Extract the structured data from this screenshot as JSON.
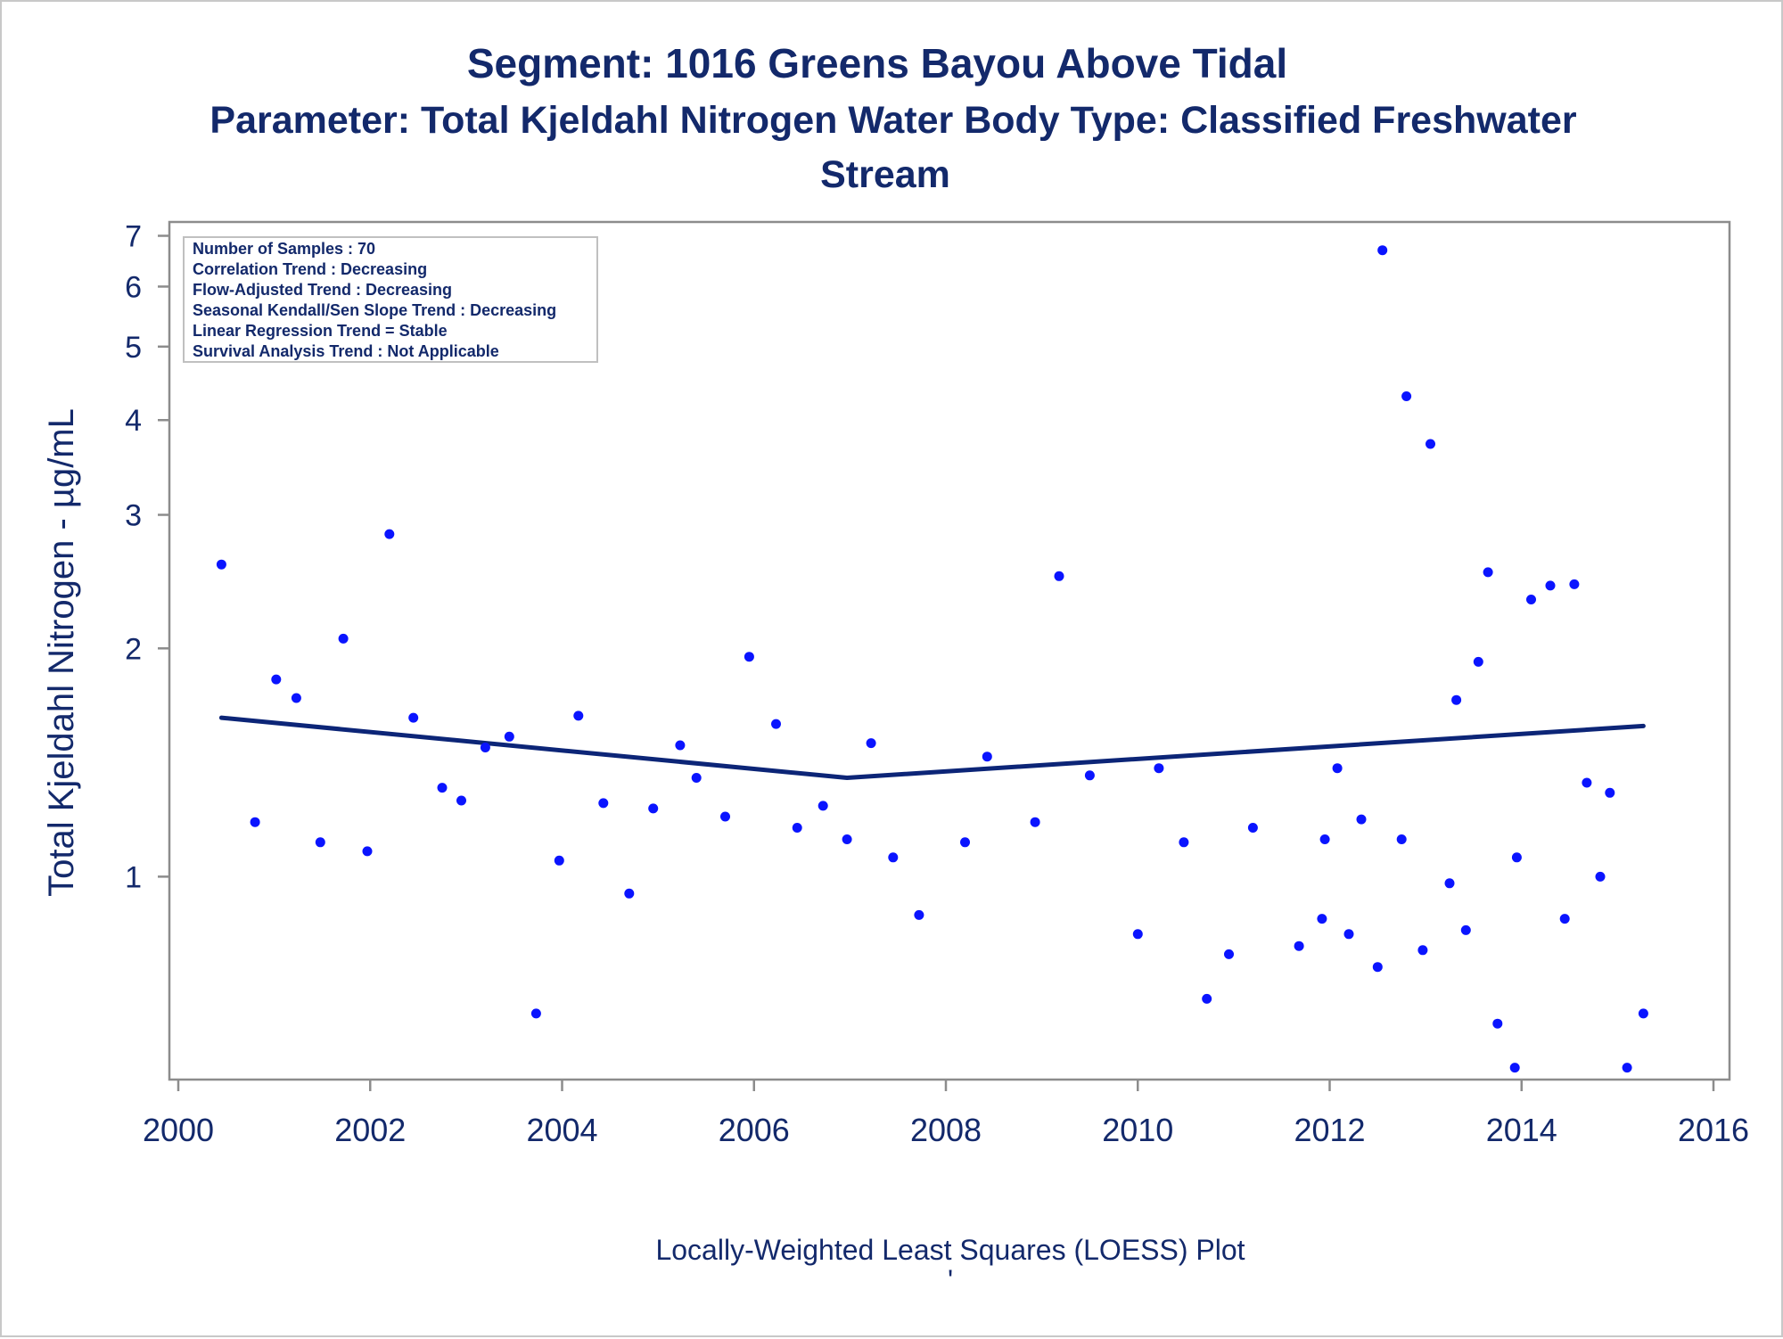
{
  "chart_data": {
    "type": "scatter",
    "title": "Segment: 1016  Greens Bayou Above Tidal",
    "subtitle_line1": "Parameter: Total Kjeldahl Nitrogen   Water Body Type: Classified Freshwater",
    "subtitle_line2": "Stream",
    "xlabel": "",
    "ylabel": "Total Kjeldahl Nitrogen -  µg/mL",
    "footnote": "Locally-Weighted Least Squares (LOESS) Plot",
    "footnote_mark": "'",
    "y_scale": "log",
    "xlim": [
      2000,
      2016
    ],
    "ylim": [
      0.54,
      7.3
    ],
    "x_ticks": [
      2000,
      2002,
      2004,
      2006,
      2008,
      2010,
      2012,
      2014,
      2016
    ],
    "y_ticks": [
      1,
      2,
      3,
      4,
      5,
      6,
      7
    ],
    "grid": false,
    "colors": {
      "points": "#0a14ff",
      "loess": "#0c2577",
      "text": "#13296b",
      "axis": "#8c8c8c"
    },
    "stats_box": {
      "location": "top-left",
      "lines": [
        "Number of Samples : 70",
        "Correlation Trend : Decreasing",
        "Flow-Adjusted Trend : Decreasing",
        "Seasonal Kendall/Sen Slope Trend : Decreasing",
        "Linear Regression Trend = Stable",
        "Survival Analysis Trend : Not Applicable"
      ]
    },
    "series": [
      {
        "type": "scatter",
        "points": [
          [
            2000.45,
            2.58
          ],
          [
            2000.8,
            1.18
          ],
          [
            2001.02,
            1.82
          ],
          [
            2001.23,
            1.72
          ],
          [
            2001.48,
            1.11
          ],
          [
            2001.72,
            2.06
          ],
          [
            2001.97,
            1.08
          ],
          [
            2002.2,
            2.83
          ],
          [
            2002.45,
            1.62
          ],
          [
            2002.75,
            1.31
          ],
          [
            2002.95,
            1.26
          ],
          [
            2003.2,
            1.48
          ],
          [
            2003.45,
            1.53
          ],
          [
            2003.73,
            0.66
          ],
          [
            2003.97,
            1.05
          ],
          [
            2004.17,
            1.63
          ],
          [
            2004.43,
            1.25
          ],
          [
            2004.7,
            0.95
          ],
          [
            2004.95,
            1.23
          ],
          [
            2005.23,
            1.49
          ],
          [
            2005.4,
            1.35
          ],
          [
            2005.7,
            1.2
          ],
          [
            2005.95,
            1.95
          ],
          [
            2006.23,
            1.59
          ],
          [
            2006.45,
            1.16
          ],
          [
            2006.72,
            1.24
          ],
          [
            2006.97,
            1.12
          ],
          [
            2007.22,
            1.5
          ],
          [
            2007.45,
            1.06
          ],
          [
            2007.72,
            0.89
          ],
          [
            2008.2,
            1.11
          ],
          [
            2008.43,
            1.44
          ],
          [
            2008.93,
            1.18
          ],
          [
            2009.18,
            2.49
          ],
          [
            2009.5,
            1.36
          ],
          [
            2010.0,
            0.84
          ],
          [
            2010.22,
            1.39
          ],
          [
            2010.48,
            1.11
          ],
          [
            2010.72,
            0.69
          ],
          [
            2010.95,
            0.79
          ],
          [
            2011.2,
            1.16
          ],
          [
            2011.68,
            0.81
          ],
          [
            2011.92,
            0.88
          ],
          [
            2011.95,
            1.12
          ],
          [
            2012.08,
            1.39
          ],
          [
            2012.2,
            0.84
          ],
          [
            2012.33,
            1.19
          ],
          [
            2012.5,
            0.76
          ],
          [
            2012.55,
            6.7
          ],
          [
            2012.75,
            1.12
          ],
          [
            2012.8,
            4.3
          ],
          [
            2012.97,
            0.8
          ],
          [
            2013.05,
            3.72
          ],
          [
            2013.25,
            0.98
          ],
          [
            2013.32,
            1.71
          ],
          [
            2013.42,
            0.85
          ],
          [
            2013.55,
            1.92
          ],
          [
            2013.65,
            2.52
          ],
          [
            2013.75,
            0.64
          ],
          [
            2013.93,
            0.56
          ],
          [
            2013.95,
            1.06
          ],
          [
            2014.1,
            2.32
          ],
          [
            2014.3,
            2.42
          ],
          [
            2014.45,
            0.88
          ],
          [
            2014.55,
            2.43
          ],
          [
            2014.68,
            1.33
          ],
          [
            2014.82,
            1.0
          ],
          [
            2014.92,
            1.29
          ],
          [
            2015.1,
            0.56
          ],
          [
            2015.27,
            0.66
          ]
        ]
      },
      {
        "type": "line",
        "points": [
          [
            2000.45,
            1.62
          ],
          [
            2006.97,
            1.35
          ],
          [
            2015.27,
            1.58
          ]
        ]
      }
    ]
  }
}
